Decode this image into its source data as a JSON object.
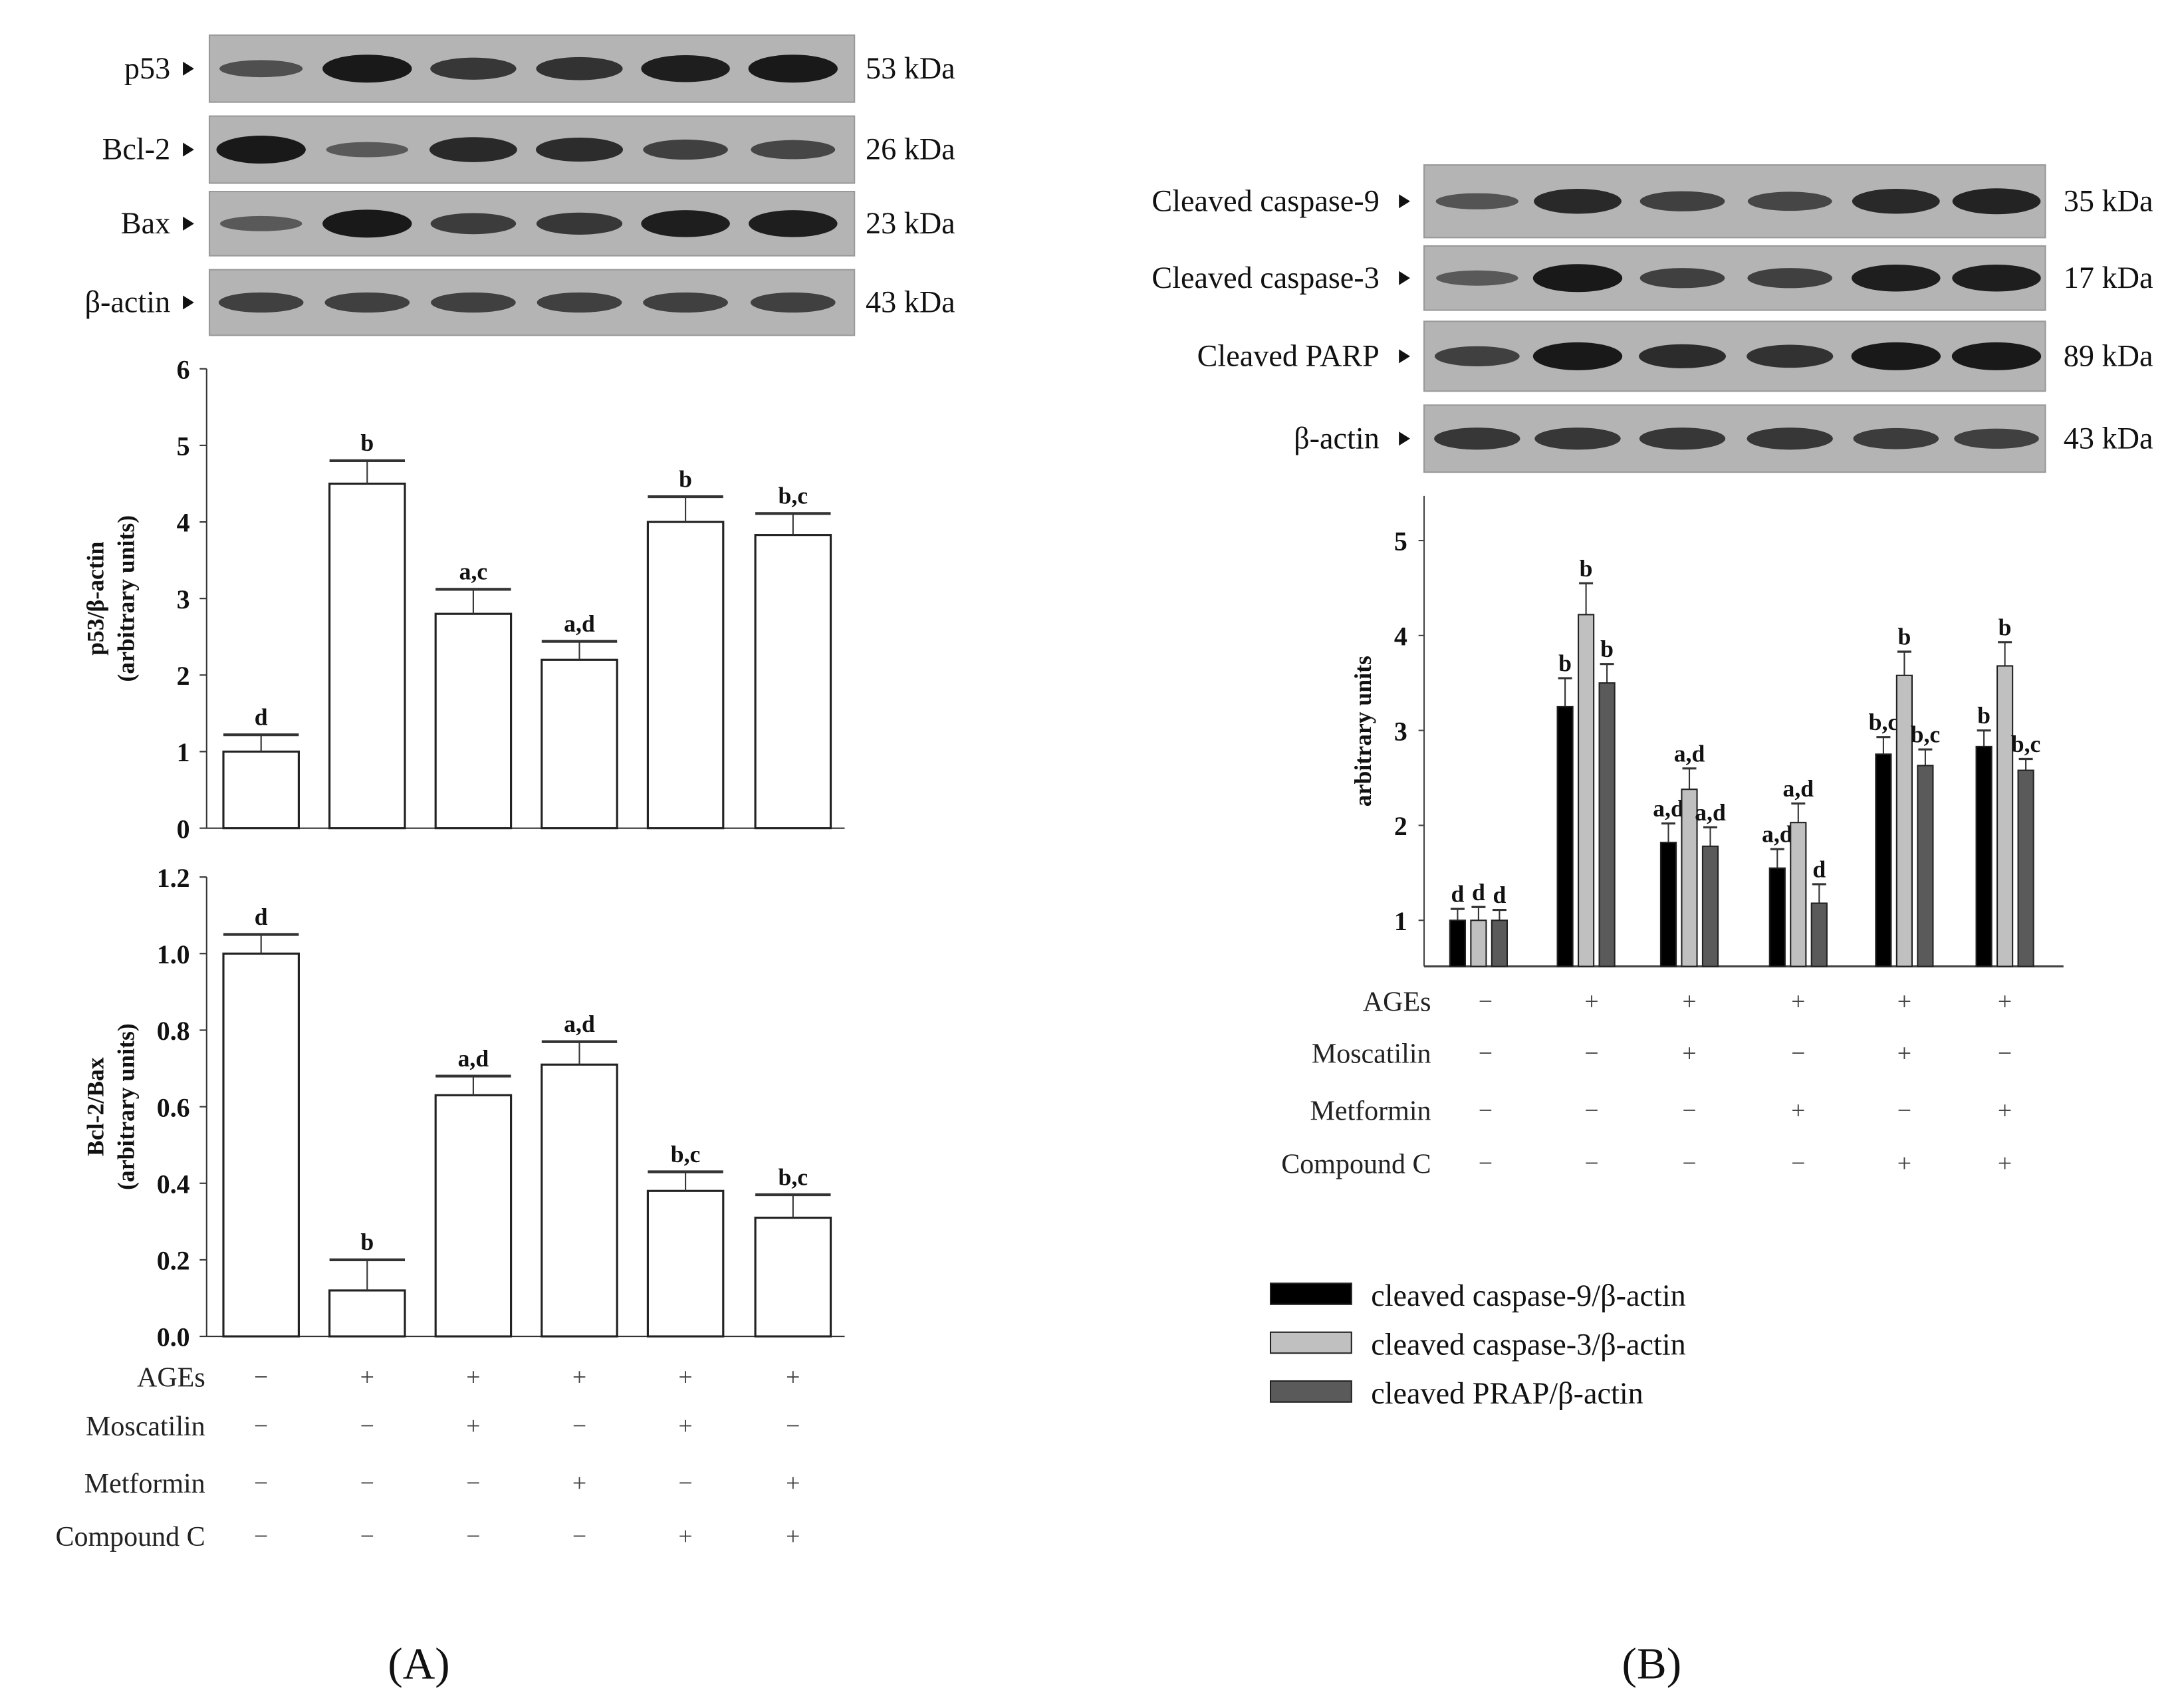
{
  "panel_labels": [
    "(A)",
    "(B)"
  ],
  "treatments": {
    "names": [
      "AGEs",
      "Moscatilin",
      "Metformin",
      "Compound C"
    ],
    "signs": [
      [
        "−",
        "+",
        "+",
        "+",
        "+",
        "+"
      ],
      [
        "−",
        "−",
        "+",
        "−",
        "+",
        "−"
      ],
      [
        "−",
        "−",
        "−",
        "+",
        "−",
        "+"
      ],
      [
        "−",
        "−",
        "−",
        "−",
        "+",
        "+"
      ]
    ]
  },
  "blots_A": [
    {
      "label": "p53",
      "kda": "53 kDa",
      "band_intensity": [
        0.45,
        1.0,
        0.7,
        0.75,
        0.95,
        1.0
      ]
    },
    {
      "label": "Bcl-2",
      "kda": "26 kDa",
      "band_intensity": [
        1.0,
        0.35,
        0.85,
        0.8,
        0.6,
        0.55
      ]
    },
    {
      "label": "Bax",
      "kda": "23 kDa",
      "band_intensity": [
        0.35,
        1.0,
        0.65,
        0.7,
        0.95,
        0.95
      ]
    },
    {
      "label": "β-actin",
      "kda": "43 kDa",
      "band_intensity": [
        0.6,
        0.6,
        0.6,
        0.6,
        0.6,
        0.6
      ]
    }
  ],
  "blots_B": [
    {
      "label": "Cleaved caspase-9",
      "kda": "35 kDa",
      "band_intensity": [
        0.4,
        0.85,
        0.6,
        0.55,
        0.85,
        0.9
      ]
    },
    {
      "label": "Cleaved caspase-3",
      "kda": "17 kDa",
      "band_intensity": [
        0.35,
        1.0,
        0.6,
        0.6,
        0.95,
        0.95
      ]
    },
    {
      "label": "Cleaved PARP",
      "kda": "89 kDa",
      "band_intensity": [
        0.6,
        1.0,
        0.8,
        0.75,
        1.0,
        1.0
      ]
    },
    {
      "label": "β-actin",
      "kda": "43 kDa",
      "band_intensity": [
        0.7,
        0.7,
        0.7,
        0.7,
        0.65,
        0.6
      ]
    }
  ],
  "chart_data": [
    {
      "type": "bar",
      "ylabel": "p53/β-actin (arbitrary units)",
      "ylabel_lines": [
        "p53/β-actin",
        "(arbitrary units)"
      ],
      "ylim": [
        0,
        6
      ],
      "yticks": [
        "0",
        "1",
        "2",
        "3",
        "4",
        "5",
        "6"
      ],
      "values": [
        1.0,
        4.5,
        2.8,
        2.2,
        4.0,
        3.83
      ],
      "errors": [
        0.22,
        0.3,
        0.32,
        0.24,
        0.33,
        0.28
      ],
      "significance": [
        "d",
        "b",
        "a,c",
        "a,d",
        "b",
        "b,c"
      ]
    },
    {
      "type": "bar",
      "ylabel": "Bcl-2/Bax (arbitrary units)",
      "ylabel_lines": [
        "Bcl-2/Bax",
        "(arbitrary units)"
      ],
      "ylim": [
        0,
        1.2
      ],
      "yticks": [
        "0.0",
        "0.2",
        "0.4",
        "0.6",
        "0.8",
        "1.0",
        "1.2"
      ],
      "values": [
        1.0,
        0.12,
        0.63,
        0.71,
        0.38,
        0.31
      ],
      "errors": [
        0.05,
        0.08,
        0.05,
        0.06,
        0.05,
        0.06
      ],
      "significance": [
        "d",
        "b",
        "a,d",
        "a,d",
        "b,c",
        "b,c"
      ]
    },
    {
      "type": "bar",
      "ylabel": "arbitrary units",
      "ylim": [
        0.5,
        5.5
      ],
      "yticks": [
        "1",
        "2",
        "3",
        "4",
        "5"
      ],
      "legend_position": "bottom-left",
      "series": [
        {
          "name": "cleaved caspase-9/β-actin",
          "color": "#000000",
          "values": [
            1.0,
            3.25,
            1.82,
            1.55,
            2.75,
            2.83
          ],
          "errors": [
            0.12,
            0.3,
            0.2,
            0.2,
            0.18,
            0.17
          ],
          "significance": [
            "d",
            "b",
            "a,d",
            "a,d",
            "b,c",
            "b"
          ]
        },
        {
          "name": "cleaved caspase-3/β-actin",
          "color": "#c0c0c0",
          "values": [
            1.0,
            4.22,
            2.38,
            2.03,
            3.58,
            3.68
          ],
          "errors": [
            0.14,
            0.33,
            0.22,
            0.2,
            0.25,
            0.25
          ],
          "significance": [
            "d",
            "b",
            "a,d",
            "a,d",
            "b",
            "b"
          ]
        },
        {
          "name": "cleaved PRAP/β-actin",
          "color": "#5a5a5a",
          "values": [
            1.0,
            3.5,
            1.78,
            1.18,
            2.63,
            2.58
          ],
          "errors": [
            0.11,
            0.2,
            0.2,
            0.2,
            0.17,
            0.12
          ],
          "significance": [
            "d",
            "b",
            "a,d",
            "d",
            "b,c",
            "b,c"
          ]
        }
      ]
    }
  ]
}
